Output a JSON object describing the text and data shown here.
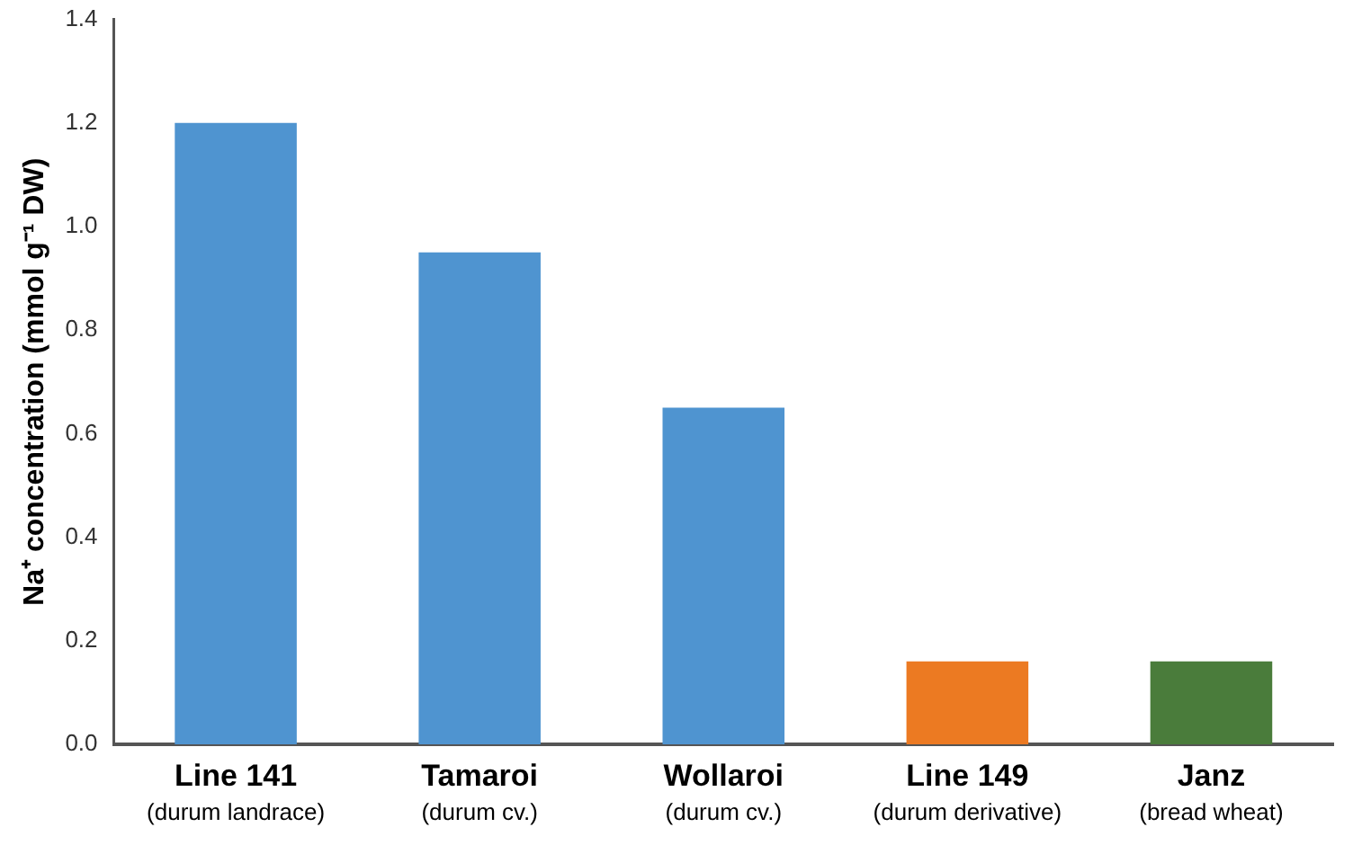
{
  "chart_data": {
    "type": "bar",
    "ylabel": "Na⁺ concentration (mmol g⁻¹ DW)",
    "categories": [
      "Line 141\n(durum landrace)",
      "Tamaroi\n(durum cv.)",
      "Wollaroi\n(durum cv.)",
      "Line 149\n(durum derivative)",
      "Janz\n(bread wheat)"
    ],
    "values": [
      1.2,
      0.95,
      0.65,
      0.16,
      0.16
    ],
    "colors": [
      "#4f94d0",
      "#4f94d0",
      "#4f94d0",
      "#ec7a22",
      "#4a7c3b"
    ],
    "ylim": [
      0,
      1.4
    ],
    "yticks": [
      {
        "value": 0,
        "label": "0.0"
      },
      {
        "value": 0.2,
        "label": "0.2"
      },
      {
        "value": 0.4,
        "label": "0.4"
      },
      {
        "value": 0.6,
        "label": "0.6"
      },
      {
        "value": 0.8,
        "label": "0.8"
      },
      {
        "value": 1,
        "label": "1.0"
      },
      {
        "value": 1.2,
        "label": "1.2"
      },
      {
        "value": 1.4,
        "label": "1.4"
      }
    ],
    "grid": false,
    "legend": false
  }
}
